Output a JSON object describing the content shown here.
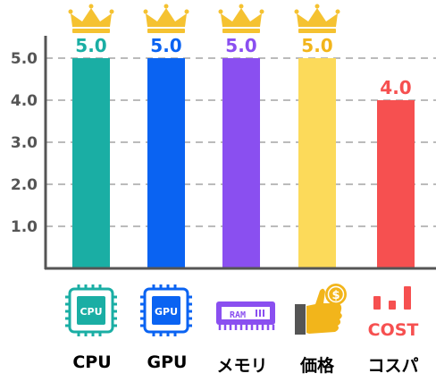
{
  "chart_data": {
    "type": "bar",
    "categories": [
      "CPU",
      "GPU",
      "メモリ",
      "価格",
      "コスパ"
    ],
    "values": [
      5.0,
      5.0,
      5.0,
      5.0,
      4.0
    ],
    "value_labels": [
      "5.0",
      "5.0",
      "5.0",
      "5.0",
      "4.0"
    ],
    "colors": [
      "#1aaea4",
      "#0a63f2",
      "#8a4ff0",
      "#fcda5a",
      "#f65050"
    ],
    "label_colors": [
      "#1aaea4",
      "#0a63f2",
      "#8a4ff0",
      "#f2b51b",
      "#f65050"
    ],
    "crowns": [
      true,
      true,
      true,
      true,
      false
    ],
    "yticks": [
      "1.0",
      "2.0",
      "3.0",
      "4.0",
      "5.0"
    ],
    "ylim": [
      0,
      5.5
    ],
    "grid": true,
    "title": "",
    "xlabel": "",
    "ylabel": ""
  },
  "icons": {
    "cpu_chip_text": "CPU",
    "gpu_chip_text": "GPU",
    "ram_chip_text": "RAM",
    "cost_text": "COST",
    "coin_symbol": "$"
  }
}
